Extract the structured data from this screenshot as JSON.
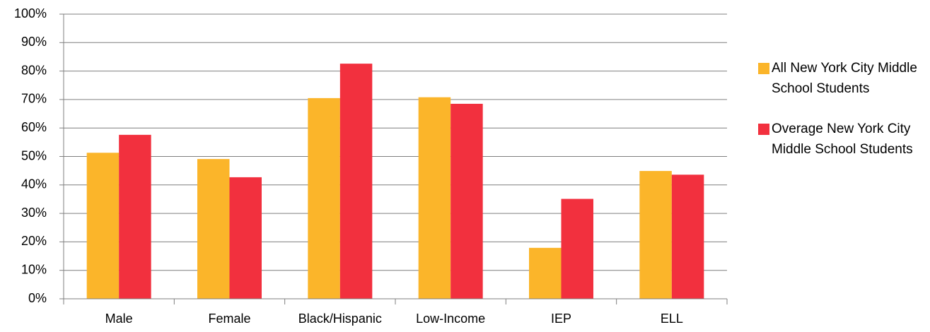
{
  "chart_data": {
    "type": "bar",
    "categories": [
      "Male",
      "Female",
      "Black/Hispanic",
      "Low-Income",
      "IEP",
      "ELL"
    ],
    "series": [
      {
        "name": "All New York City Middle School Students",
        "color": "#fbb52a",
        "values": [
          51.3,
          49.1,
          70.5,
          70.8,
          17.9,
          44.9
        ]
      },
      {
        "name": "Overage New York City Middle School Students",
        "color": "#f2303e",
        "values": [
          57.6,
          42.7,
          82.6,
          68.5,
          35.1,
          43.6
        ]
      }
    ],
    "ylim": [
      0,
      100
    ],
    "yticks": [
      {
        "value": 0,
        "label": "0%"
      },
      {
        "value": 10,
        "label": "10%"
      },
      {
        "value": 20,
        "label": "20%"
      },
      {
        "value": 30,
        "label": "30%"
      },
      {
        "value": 40,
        "label": "40%"
      },
      {
        "value": 50,
        "label": "50%"
      },
      {
        "value": 60,
        "label": "60%"
      },
      {
        "value": 70,
        "label": "70%"
      },
      {
        "value": 80,
        "label": "80%"
      },
      {
        "value": 90,
        "label": "90%"
      },
      {
        "value": 100,
        "label": "100%"
      }
    ],
    "grid": true,
    "legend": "right"
  }
}
